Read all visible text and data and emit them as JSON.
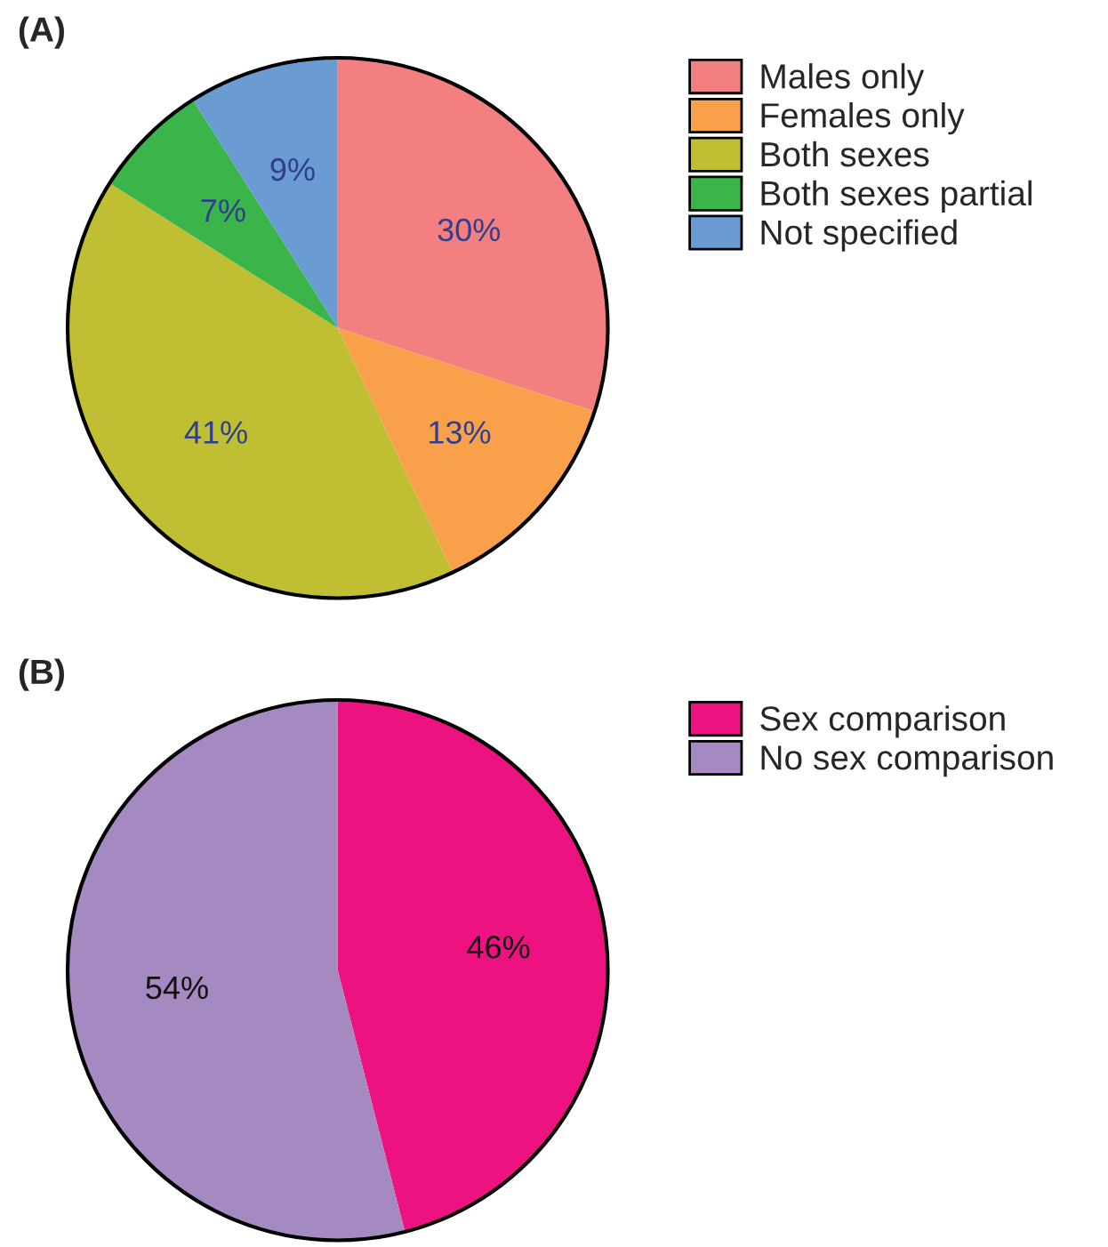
{
  "chart_data": [
    {
      "type": "pie",
      "title": "(A)",
      "categories": [
        "Males only",
        "Females only",
        "Both sexes",
        "Both sexes partial",
        "Not specified"
      ],
      "values": [
        30,
        13,
        41,
        7,
        9
      ],
      "value_labels": [
        "30%",
        "13%",
        "41%",
        "7%",
        "9%"
      ],
      "colors": [
        "#f47f80",
        "#f9a04a",
        "#c0bf33",
        "#3bb54a",
        "#6a9bd3"
      ],
      "legend": "right"
    },
    {
      "type": "pie",
      "title": "(B)",
      "categories": [
        "Sex comparison",
        "No sex comparison"
      ],
      "values": [
        46,
        54
      ],
      "value_labels": [
        "46%",
        "54%"
      ],
      "colors": [
        "#ec1380",
        "#a48ac0"
      ],
      "legend": "right"
    }
  ]
}
